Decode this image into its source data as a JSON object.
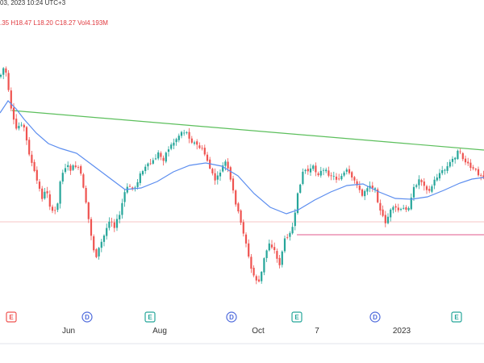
{
  "header": {
    "datetime": "03, 2023 10:24 UTC+3",
    "ohlc_fragment": ".35",
    "high": "H18.47",
    "low": "L18.20",
    "close": "C18.27",
    "volume": "Vol4.193M"
  },
  "colors": {
    "up": "#26a69a",
    "down": "#ef5350",
    "ma": "#5b8def",
    "trendline": "#5cbf5c",
    "support": "#e0598b",
    "hline": "#f7c6c6",
    "earnings": "#26a69a",
    "dividend": "#4f6bdc",
    "earnings_red": "#ef5350"
  },
  "chart_data": {
    "type": "candlestick",
    "x_ticks": [
      "Jun",
      "Aug",
      "Oct",
      "7",
      "2023"
    ],
    "events": [
      {
        "label": "E",
        "kind": "earnings-red"
      },
      {
        "label": "D",
        "kind": "dividend"
      },
      {
        "label": "E",
        "kind": "earnings"
      },
      {
        "label": "D",
        "kind": "dividend"
      },
      {
        "label": "E",
        "kind": "earnings"
      },
      {
        "label": "D",
        "kind": "dividend"
      },
      {
        "label": "E",
        "kind": "earnings"
      }
    ],
    "grid": false,
    "series": [
      {
        "kind": "price",
        "style": "candles"
      },
      {
        "kind": "moving-average",
        "style": "line"
      },
      {
        "kind": "trendline",
        "style": "line"
      },
      {
        "kind": "support-level",
        "style": "line"
      }
    ]
  }
}
